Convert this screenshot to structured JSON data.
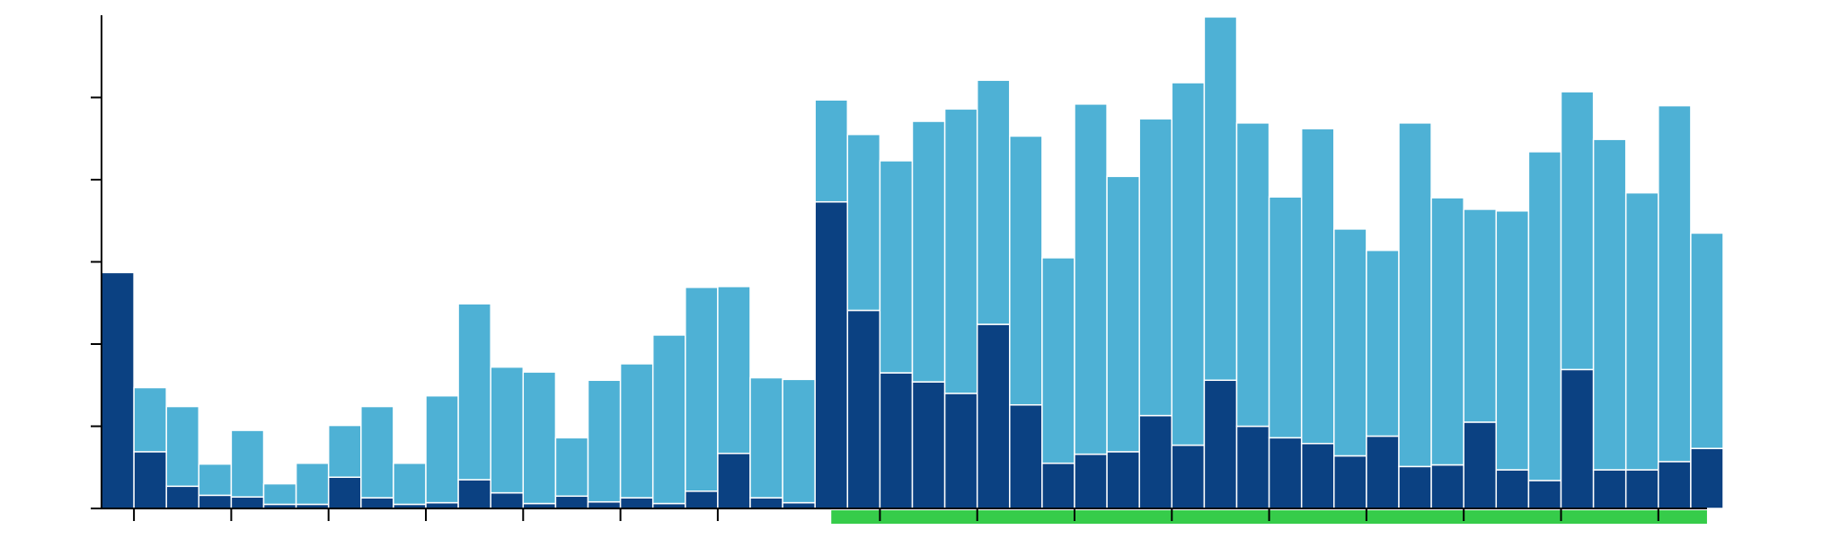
{
  "chart_data": {
    "type": "bar",
    "stacked": true,
    "title": "",
    "xlabel": "",
    "ylabel": "",
    "ylim": [
      0,
      6
    ],
    "y_ticks": [
      1,
      2,
      3,
      4,
      5
    ],
    "x_count": 50,
    "x_tick_positions": [
      1,
      4,
      7,
      10,
      13,
      16,
      19,
      24,
      27,
      30,
      33,
      36,
      39,
      42,
      45,
      48
    ],
    "highlight_range": [
      22.5,
      49.5
    ],
    "grid": false,
    "legend": "none",
    "colors": {
      "bottom": "#0b4182",
      "top": "#4eb1d5",
      "highlight": "#36cc4a",
      "axis": "#000000"
    },
    "series": [
      {
        "values": [
          2.87,
          0.69,
          0.27,
          0.16,
          0.14,
          0.05,
          0.05,
          0.38,
          0.13,
          0.05,
          0.07,
          0.35,
          0.19,
          0.06,
          0.15,
          0.08,
          0.13,
          0.06,
          0.21,
          0.67,
          0.13,
          0.07,
          3.73,
          2.41,
          1.65,
          1.54,
          1.4,
          2.24,
          1.26,
          0.55,
          0.66,
          0.69,
          1.13,
          0.77,
          1.56,
          1.0,
          0.86,
          0.79,
          0.64,
          0.88,
          0.51,
          0.53,
          1.05,
          0.47,
          0.34,
          1.69,
          0.47,
          0.47,
          0.57,
          0.73
        ]
      },
      {
        "values": [
          0.0,
          0.78,
          0.97,
          0.38,
          0.81,
          0.25,
          0.5,
          0.63,
          1.11,
          0.5,
          1.3,
          2.14,
          1.53,
          1.6,
          0.71,
          1.48,
          1.63,
          2.05,
          2.48,
          2.03,
          1.46,
          1.5,
          1.24,
          2.14,
          2.58,
          3.17,
          3.46,
          2.97,
          3.27,
          2.5,
          4.26,
          3.35,
          3.61,
          4.41,
          4.42,
          3.69,
          2.93,
          3.83,
          2.76,
          2.26,
          4.18,
          3.25,
          2.59,
          3.15,
          4.0,
          3.38,
          4.02,
          3.37,
          4.33,
          2.62
        ]
      }
    ]
  }
}
